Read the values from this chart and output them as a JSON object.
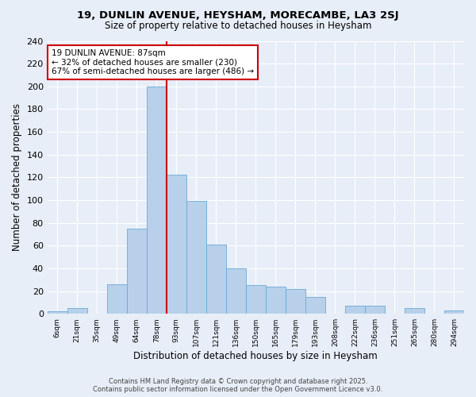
{
  "title": "19, DUNLIN AVENUE, HEYSHAM, MORECAMBE, LA3 2SJ",
  "subtitle": "Size of property relative to detached houses in Heysham",
  "xlabel": "Distribution of detached houses by size in Heysham",
  "ylabel": "Number of detached properties",
  "annotation_line1": "19 DUNLIN AVENUE: 87sqm",
  "annotation_line2": "← 32% of detached houses are smaller (230)",
  "annotation_line3": "67% of semi-detached houses are larger (486) →",
  "categories": [
    "6sqm",
    "21sqm",
    "35sqm",
    "49sqm",
    "64sqm",
    "78sqm",
    "93sqm",
    "107sqm",
    "121sqm",
    "136sqm",
    "150sqm",
    "165sqm",
    "179sqm",
    "193sqm",
    "208sqm",
    "222sqm",
    "236sqm",
    "251sqm",
    "265sqm",
    "280sqm",
    "294sqm"
  ],
  "values": [
    2,
    5,
    0,
    26,
    75,
    200,
    122,
    99,
    61,
    40,
    25,
    24,
    22,
    15,
    0,
    7,
    7,
    0,
    5,
    0,
    3
  ],
  "bar_color": "#b8d0ea",
  "bar_edge_color": "#6aaad4",
  "vline_color": "#cc0000",
  "bg_color": "#e8eef8",
  "grid_color": "#ffffff",
  "annotation_box_color": "#cc0000",
  "annotation_fill": "#ffffff",
  "ylim": [
    0,
    240
  ],
  "yticks": [
    0,
    20,
    40,
    60,
    80,
    100,
    120,
    140,
    160,
    180,
    200,
    220,
    240
  ],
  "footer1": "Contains HM Land Registry data © Crown copyright and database right 2025.",
  "footer2": "Contains public sector information licensed under the Open Government Licence v3.0."
}
